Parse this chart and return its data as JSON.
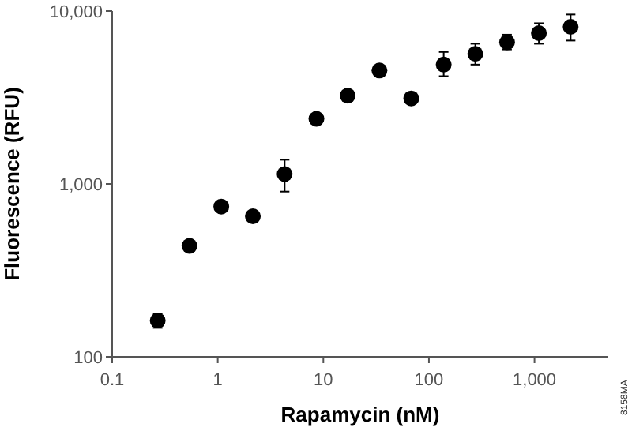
{
  "chart_data": {
    "type": "scatter",
    "xlabel": "Rapamycin (nM)",
    "ylabel": "Fluorescence (RFU)",
    "log": "xy",
    "marker": "circle",
    "grid": false,
    "xlim": [
      0.1,
      5000
    ],
    "ylim": [
      100,
      10000
    ],
    "xticks": [
      0.1,
      1,
      10,
      100,
      {
        "value": 1000,
        "label": "1,000"
      }
    ],
    "yticks": [
      100,
      {
        "value": 1000,
        "label": "1,000"
      },
      {
        "value": 10000,
        "label": "10,000"
      }
    ],
    "series": [
      {
        "color": "#000000",
        "x": [
          0.27,
          0.54,
          1.08,
          2.15,
          4.3,
          8.6,
          17,
          34,
          68,
          138,
          275,
          550,
          1100,
          2200
        ],
        "values": [
          162,
          438,
          740,
          650,
          1140,
          2380,
          3240,
          4530,
          3125,
          4900,
          5650,
          6600,
          7450,
          8100
        ],
        "errors": [
          [
            147,
            178
          ],
          null,
          null,
          null,
          [
            903,
            1380
          ],
          null,
          null,
          null,
          null,
          [
            4200,
            5800
          ],
          [
            4900,
            6470
          ],
          [
            6000,
            7300
          ],
          [
            6470,
            8500
          ],
          [
            6750,
            9550
          ]
        ]
      }
    ],
    "annotations": [
      "8158MA"
    ]
  }
}
